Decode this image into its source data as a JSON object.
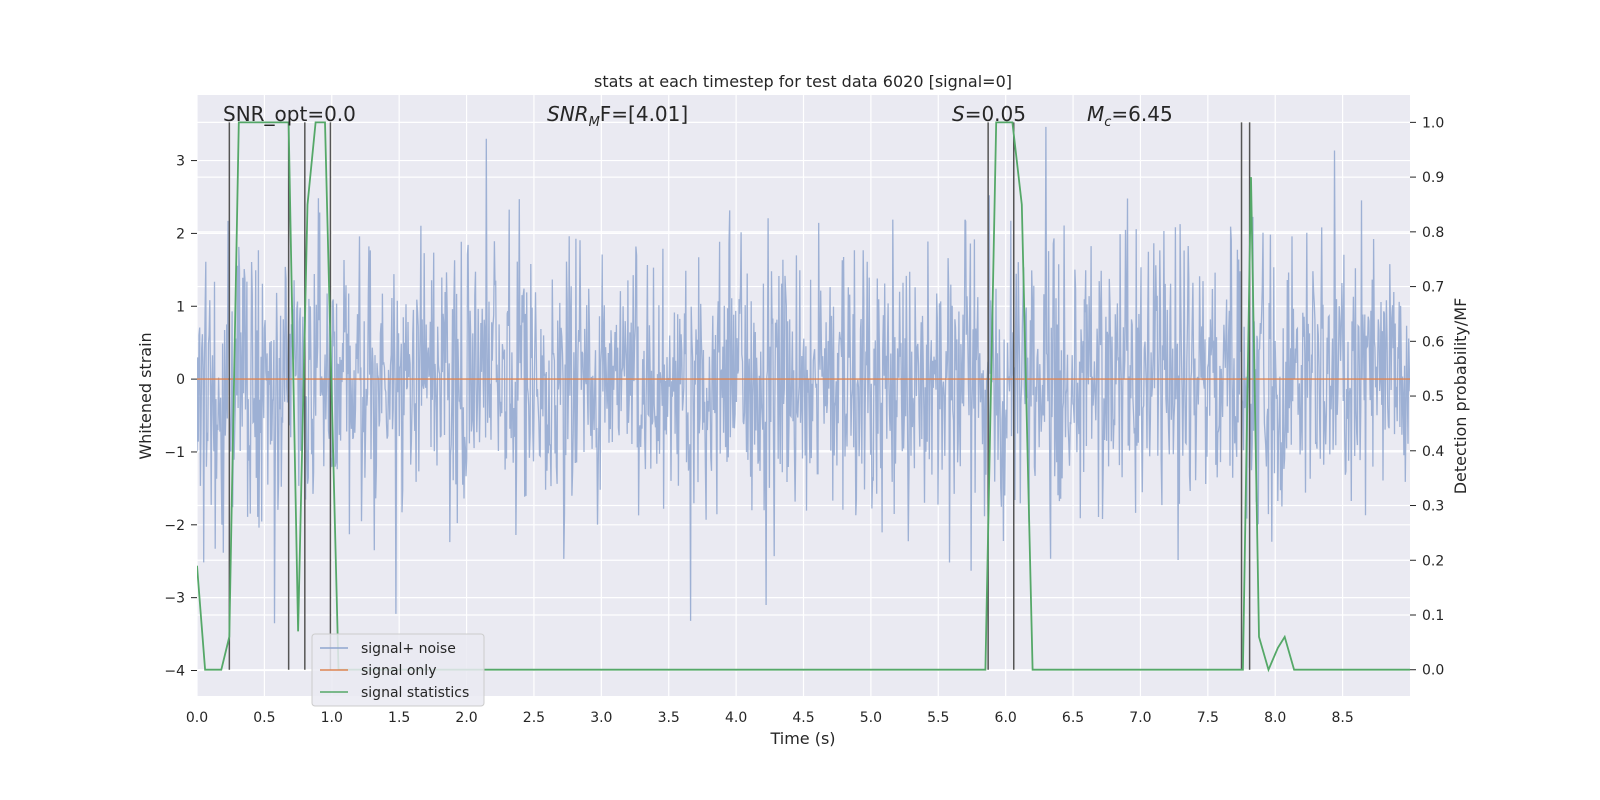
{
  "chart_data": {
    "type": "line",
    "title": "stats at each timestep for test data 6020 [signal=0]",
    "xlabel": "Time (s)",
    "ylabel_left": "Whitened strain",
    "ylabel_right": "Detection probability/MF",
    "xlim": [
      0.0,
      9.0
    ],
    "ylim_left": [
      -4.35,
      3.9
    ],
    "ylim_right": [
      -0.048,
      1.05
    ],
    "x_ticks": [
      "0.0",
      "0.5",
      "1.0",
      "1.5",
      "2.0",
      "2.5",
      "3.0",
      "3.5",
      "4.0",
      "4.5",
      "5.0",
      "5.5",
      "6.0",
      "6.5",
      "7.0",
      "7.5",
      "8.0",
      "8.5"
    ],
    "y_ticks_left": [
      "3",
      "2",
      "1",
      "0",
      "−1",
      "−2",
      "−3",
      "−4"
    ],
    "y_ticks_right": [
      "1.0",
      "0.9",
      "0.8",
      "0.7",
      "0.6",
      "0.5",
      "0.4",
      "0.3",
      "0.2",
      "0.1",
      "0.0"
    ],
    "annotations": {
      "snr_opt": "SNR_opt=0.0",
      "snr_mf_main": "SNR",
      "snr_mf_sub": "M",
      "snr_mf_rest": "F=[4.01]",
      "s_main": "S",
      "s_rest": "=0.05",
      "mc_main": "M",
      "mc_sub": "c",
      "mc_rest": "=6.45"
    },
    "legend": [
      "signal+ noise",
      "signal only",
      "signal statistics"
    ],
    "series": [
      {
        "name": "signal+ noise",
        "color": "#8fa6cf",
        "description": "whitened noise, std ~1, range approx -3.3 to 3.6"
      },
      {
        "name": "signal only",
        "color": "#dd8452",
        "values_constant": 0
      },
      {
        "name": "signal statistics",
        "color": "#55a868",
        "x": [
          0.0,
          0.06,
          0.18,
          0.24,
          0.31,
          0.68,
          0.75,
          0.82,
          0.88,
          0.95,
          1.05,
          1.12,
          1.2,
          5.85,
          5.93,
          6.05,
          6.12,
          6.2,
          7.72,
          7.76,
          7.82,
          7.88,
          7.95,
          8.02,
          8.07,
          8.14,
          9.0
        ],
        "y": [
          0.19,
          0.0,
          0.0,
          0.06,
          1.0,
          1.0,
          0.07,
          0.85,
          1.0,
          1.0,
          0.0,
          0.0,
          0.0,
          0.0,
          1.0,
          1.0,
          0.85,
          0.0,
          0.0,
          0.0,
          0.9,
          0.06,
          0.0,
          0.04,
          0.06,
          0.0,
          0.0
        ]
      }
    ],
    "vertical_lines_x": [
      0.24,
      0.68,
      0.8,
      0.99,
      5.87,
      6.06,
      7.75,
      7.81
    ]
  }
}
